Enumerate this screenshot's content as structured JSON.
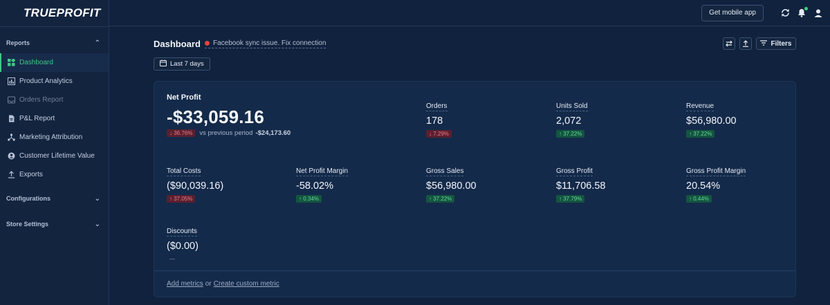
{
  "app": {
    "logo": "TRUEPROFIT",
    "logo_check": "✓"
  },
  "sidebar": {
    "sections": [
      {
        "title": "Reports",
        "expanded": true
      },
      {
        "title": "Configurations",
        "expanded": false
      },
      {
        "title": "Store Settings",
        "expanded": false
      }
    ],
    "items": [
      {
        "label": "Dashboard",
        "icon": "dashboard-icon",
        "state": "active"
      },
      {
        "label": "Product Analytics",
        "icon": "bar-chart-icon",
        "state": "normal"
      },
      {
        "label": "Orders Report",
        "icon": "inbox-icon",
        "state": "disabled"
      },
      {
        "label": "P&L Report",
        "icon": "document-icon",
        "state": "normal"
      },
      {
        "label": "Marketing Attribution",
        "icon": "network-icon",
        "state": "normal"
      },
      {
        "label": "Customer Lifetime Value",
        "icon": "user-circle-icon",
        "state": "normal"
      },
      {
        "label": "Exports",
        "icon": "upload-icon",
        "state": "normal"
      }
    ]
  },
  "topbar": {
    "mobile_button": "Get mobile app"
  },
  "header": {
    "title": "Dashboard",
    "warning": "Facebook sync issue. Fix connection",
    "date_range": "Last 7 days",
    "filters_label": "Filters"
  },
  "metrics": {
    "net_profit": {
      "label": "Net Profit",
      "value": "-$33,059.16",
      "change": "↓ 36.76%",
      "compare_text": "vs previous period",
      "previous_value": "-$24,173.60"
    },
    "orders": {
      "label": "Orders",
      "value": "178",
      "change": "↓ 7.29%",
      "trend": "down"
    },
    "units_sold": {
      "label": "Units Sold",
      "value": "2,072",
      "change": "↑ 37.22%",
      "trend": "up"
    },
    "revenue": {
      "label": "Revenue",
      "value": "$56,980.00",
      "change": "↑ 37.22%",
      "trend": "up"
    },
    "total_costs": {
      "label": "Total Costs",
      "value": "($90,039.16)",
      "change": "↑ 37.05%",
      "trend": "down"
    },
    "net_profit_margin": {
      "label": "Net Profit Margin",
      "value": "-58.02%",
      "change": "↑ 0.34%",
      "trend": "up"
    },
    "gross_sales": {
      "label": "Gross Sales",
      "value": "$56,980.00",
      "change": "↑ 37.22%",
      "trend": "up"
    },
    "gross_profit": {
      "label": "Gross Profit",
      "value": "$11,706.58",
      "change": "↑ 37.79%",
      "trend": "up"
    },
    "gross_profit_margin": {
      "label": "Gross Profit Margin",
      "value": "20.54%",
      "change": "↑ 0.44%",
      "trend": "up"
    },
    "discounts": {
      "label": "Discounts",
      "value": "($0.00)",
      "change": "—",
      "trend": "neutral"
    }
  },
  "footer": {
    "add_metrics": "Add metrics",
    "or": "or",
    "create_custom": "Create custom metric"
  },
  "colors": {
    "accent": "#3fc884",
    "up": "#62d79b",
    "down": "#ef7a85",
    "warning": "#e2463b"
  }
}
